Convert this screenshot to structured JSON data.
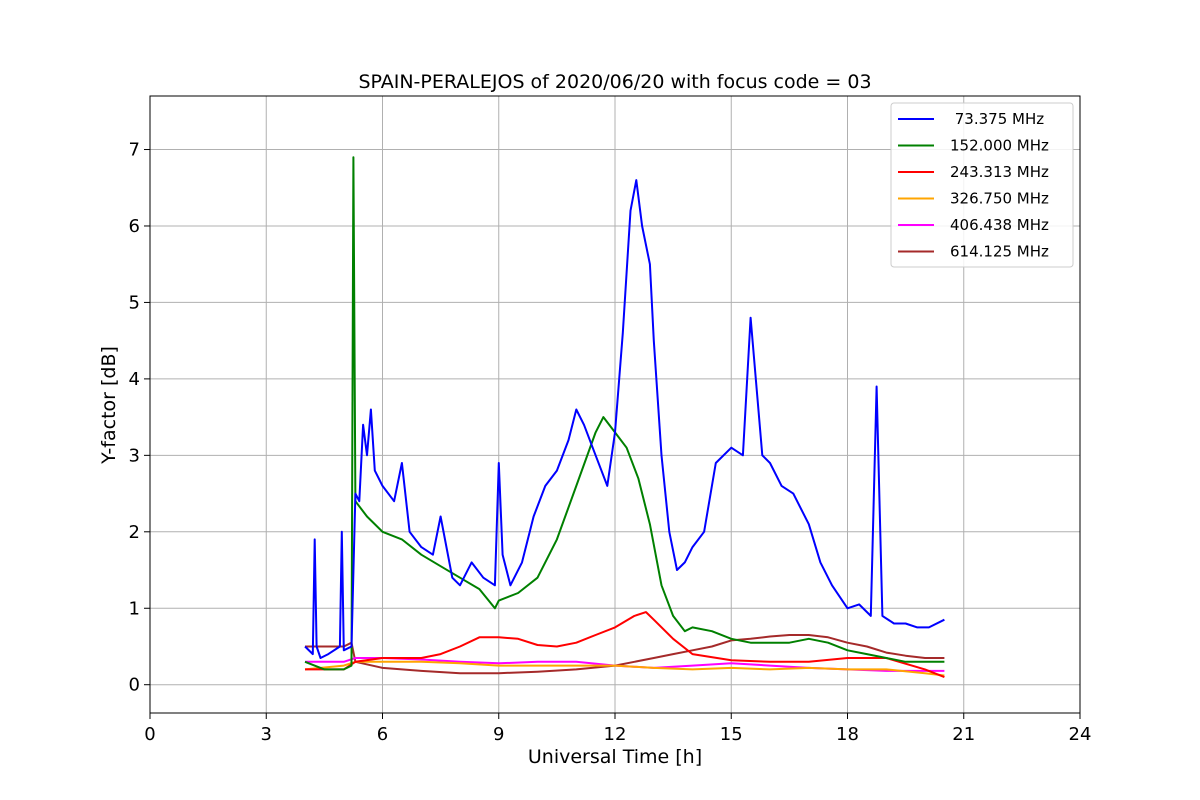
{
  "chart_data": {
    "type": "line",
    "title": "SPAIN-PERALEJOS of 2020/06/20 with focus code = 03",
    "xlabel": "Universal Time [h]",
    "ylabel": "Y-factor [dB]",
    "xlim": [
      0,
      24
    ],
    "ylim": [
      -0.37,
      7.7
    ],
    "xticks": [
      0,
      3,
      6,
      9,
      12,
      15,
      18,
      21,
      24
    ],
    "yticks": [
      0,
      1,
      2,
      3,
      4,
      5,
      6,
      7
    ],
    "grid": true,
    "legend_position": "top-right",
    "series": [
      {
        "name": " 73.375 MHz",
        "color": "#0000ff",
        "x": [
          4.0,
          4.2,
          4.25,
          4.3,
          4.4,
          4.6,
          4.9,
          4.95,
          5.0,
          5.2,
          5.3,
          5.4,
          5.5,
          5.6,
          5.7,
          5.8,
          6.0,
          6.3,
          6.5,
          6.7,
          7.0,
          7.3,
          7.5,
          7.8,
          8.0,
          8.3,
          8.6,
          8.9,
          9.0,
          9.1,
          9.3,
          9.6,
          9.9,
          10.2,
          10.5,
          10.8,
          11.0,
          11.2,
          11.5,
          11.8,
          12.0,
          12.2,
          12.4,
          12.55,
          12.7,
          12.9,
          13.0,
          13.2,
          13.4,
          13.6,
          13.8,
          14.0,
          14.3,
          14.6,
          15.0,
          15.3,
          15.5,
          15.8,
          16.0,
          16.3,
          16.6,
          17.0,
          17.3,
          17.6,
          18.0,
          18.3,
          18.6,
          18.75,
          18.9,
          19.2,
          19.5,
          19.8,
          20.1,
          20.5
        ],
        "y": [
          0.5,
          0.4,
          1.9,
          0.5,
          0.35,
          0.4,
          0.5,
          2.0,
          0.45,
          0.5,
          2.5,
          2.4,
          3.4,
          3.0,
          3.6,
          2.8,
          2.6,
          2.4,
          2.9,
          2.0,
          1.8,
          1.7,
          2.2,
          1.4,
          1.3,
          1.6,
          1.4,
          1.3,
          2.9,
          1.7,
          1.3,
          1.6,
          2.2,
          2.6,
          2.8,
          3.2,
          3.6,
          3.4,
          3.0,
          2.6,
          3.3,
          4.6,
          6.2,
          6.6,
          6.0,
          5.5,
          4.5,
          3.0,
          2.0,
          1.5,
          1.6,
          1.8,
          2.0,
          2.9,
          3.1,
          3.0,
          4.8,
          3.0,
          2.9,
          2.6,
          2.5,
          2.1,
          1.6,
          1.3,
          1.0,
          1.05,
          0.9,
          3.9,
          0.9,
          0.8,
          0.8,
          0.75,
          0.75,
          0.85
        ]
      },
      {
        "name": "152.000 MHz",
        "color": "#008000",
        "x": [
          4.0,
          4.5,
          5.0,
          5.2,
          5.25,
          5.3,
          5.6,
          6.0,
          6.5,
          7.0,
          7.5,
          8.0,
          8.5,
          8.9,
          9.0,
          9.5,
          10.0,
          10.5,
          11.0,
          11.5,
          11.7,
          12.0,
          12.3,
          12.6,
          12.9,
          13.2,
          13.5,
          13.8,
          14.0,
          14.5,
          15.0,
          15.5,
          16.0,
          16.5,
          17.0,
          17.5,
          18.0,
          18.5,
          19.0,
          19.5,
          20.0,
          20.5
        ],
        "y": [
          0.3,
          0.2,
          0.2,
          0.25,
          6.9,
          2.4,
          2.2,
          2.0,
          1.9,
          1.7,
          1.55,
          1.4,
          1.25,
          1.0,
          1.1,
          1.2,
          1.4,
          1.9,
          2.6,
          3.3,
          3.5,
          3.3,
          3.1,
          2.7,
          2.1,
          1.3,
          0.9,
          0.7,
          0.75,
          0.7,
          0.6,
          0.55,
          0.55,
          0.55,
          0.6,
          0.55,
          0.45,
          0.4,
          0.35,
          0.3,
          0.3,
          0.3
        ]
      },
      {
        "name": "243.313 MHz",
        "color": "#ff0000",
        "x": [
          4.0,
          5.0,
          5.3,
          6.0,
          7.0,
          7.5,
          8.0,
          8.5,
          9.0,
          9.5,
          10.0,
          10.5,
          11.0,
          11.5,
          12.0,
          12.5,
          12.8,
          13.0,
          13.5,
          14.0,
          15.0,
          16.0,
          17.0,
          18.0,
          19.0,
          20.0,
          20.5
        ],
        "y": [
          0.2,
          0.2,
          0.3,
          0.35,
          0.35,
          0.4,
          0.5,
          0.62,
          0.62,
          0.6,
          0.52,
          0.5,
          0.55,
          0.65,
          0.75,
          0.9,
          0.95,
          0.85,
          0.6,
          0.4,
          0.32,
          0.3,
          0.3,
          0.35,
          0.35,
          0.2,
          0.1
        ]
      },
      {
        "name": "326.750 MHz",
        "color": "#ffa500",
        "x": [
          4.0,
          5.0,
          5.3,
          6.0,
          7.0,
          8.0,
          9.0,
          10.0,
          11.0,
          12.0,
          13.0,
          14.0,
          15.0,
          16.0,
          17.0,
          18.0,
          19.0,
          20.0,
          20.5
        ],
        "y": [
          0.2,
          0.25,
          0.3,
          0.3,
          0.3,
          0.28,
          0.25,
          0.25,
          0.25,
          0.25,
          0.22,
          0.2,
          0.22,
          0.2,
          0.22,
          0.2,
          0.2,
          0.15,
          0.12
        ]
      },
      {
        "name": "406.438 MHz",
        "color": "#ff00ff",
        "x": [
          4.0,
          5.0,
          5.3,
          6.0,
          7.0,
          8.0,
          9.0,
          10.0,
          11.0,
          12.0,
          13.0,
          14.0,
          15.0,
          16.0,
          17.0,
          18.0,
          19.0,
          20.0,
          20.5
        ],
        "y": [
          0.3,
          0.3,
          0.35,
          0.35,
          0.33,
          0.3,
          0.28,
          0.3,
          0.3,
          0.25,
          0.22,
          0.25,
          0.28,
          0.25,
          0.22,
          0.2,
          0.18,
          0.18,
          0.18
        ]
      },
      {
        "name": "614.125 MHz",
        "color": "#a52a2a",
        "x": [
          4.0,
          5.0,
          5.2,
          5.3,
          6.0,
          7.0,
          8.0,
          9.0,
          10.0,
          11.0,
          12.0,
          12.5,
          13.0,
          13.5,
          14.0,
          14.5,
          15.0,
          15.5,
          16.0,
          16.5,
          17.0,
          17.5,
          18.0,
          18.5,
          19.0,
          19.5,
          20.0,
          20.5
        ],
        "y": [
          0.5,
          0.5,
          0.55,
          0.3,
          0.22,
          0.18,
          0.15,
          0.15,
          0.17,
          0.2,
          0.25,
          0.3,
          0.35,
          0.4,
          0.45,
          0.5,
          0.58,
          0.6,
          0.63,
          0.65,
          0.65,
          0.62,
          0.55,
          0.5,
          0.42,
          0.38,
          0.35,
          0.35
        ]
      }
    ]
  }
}
